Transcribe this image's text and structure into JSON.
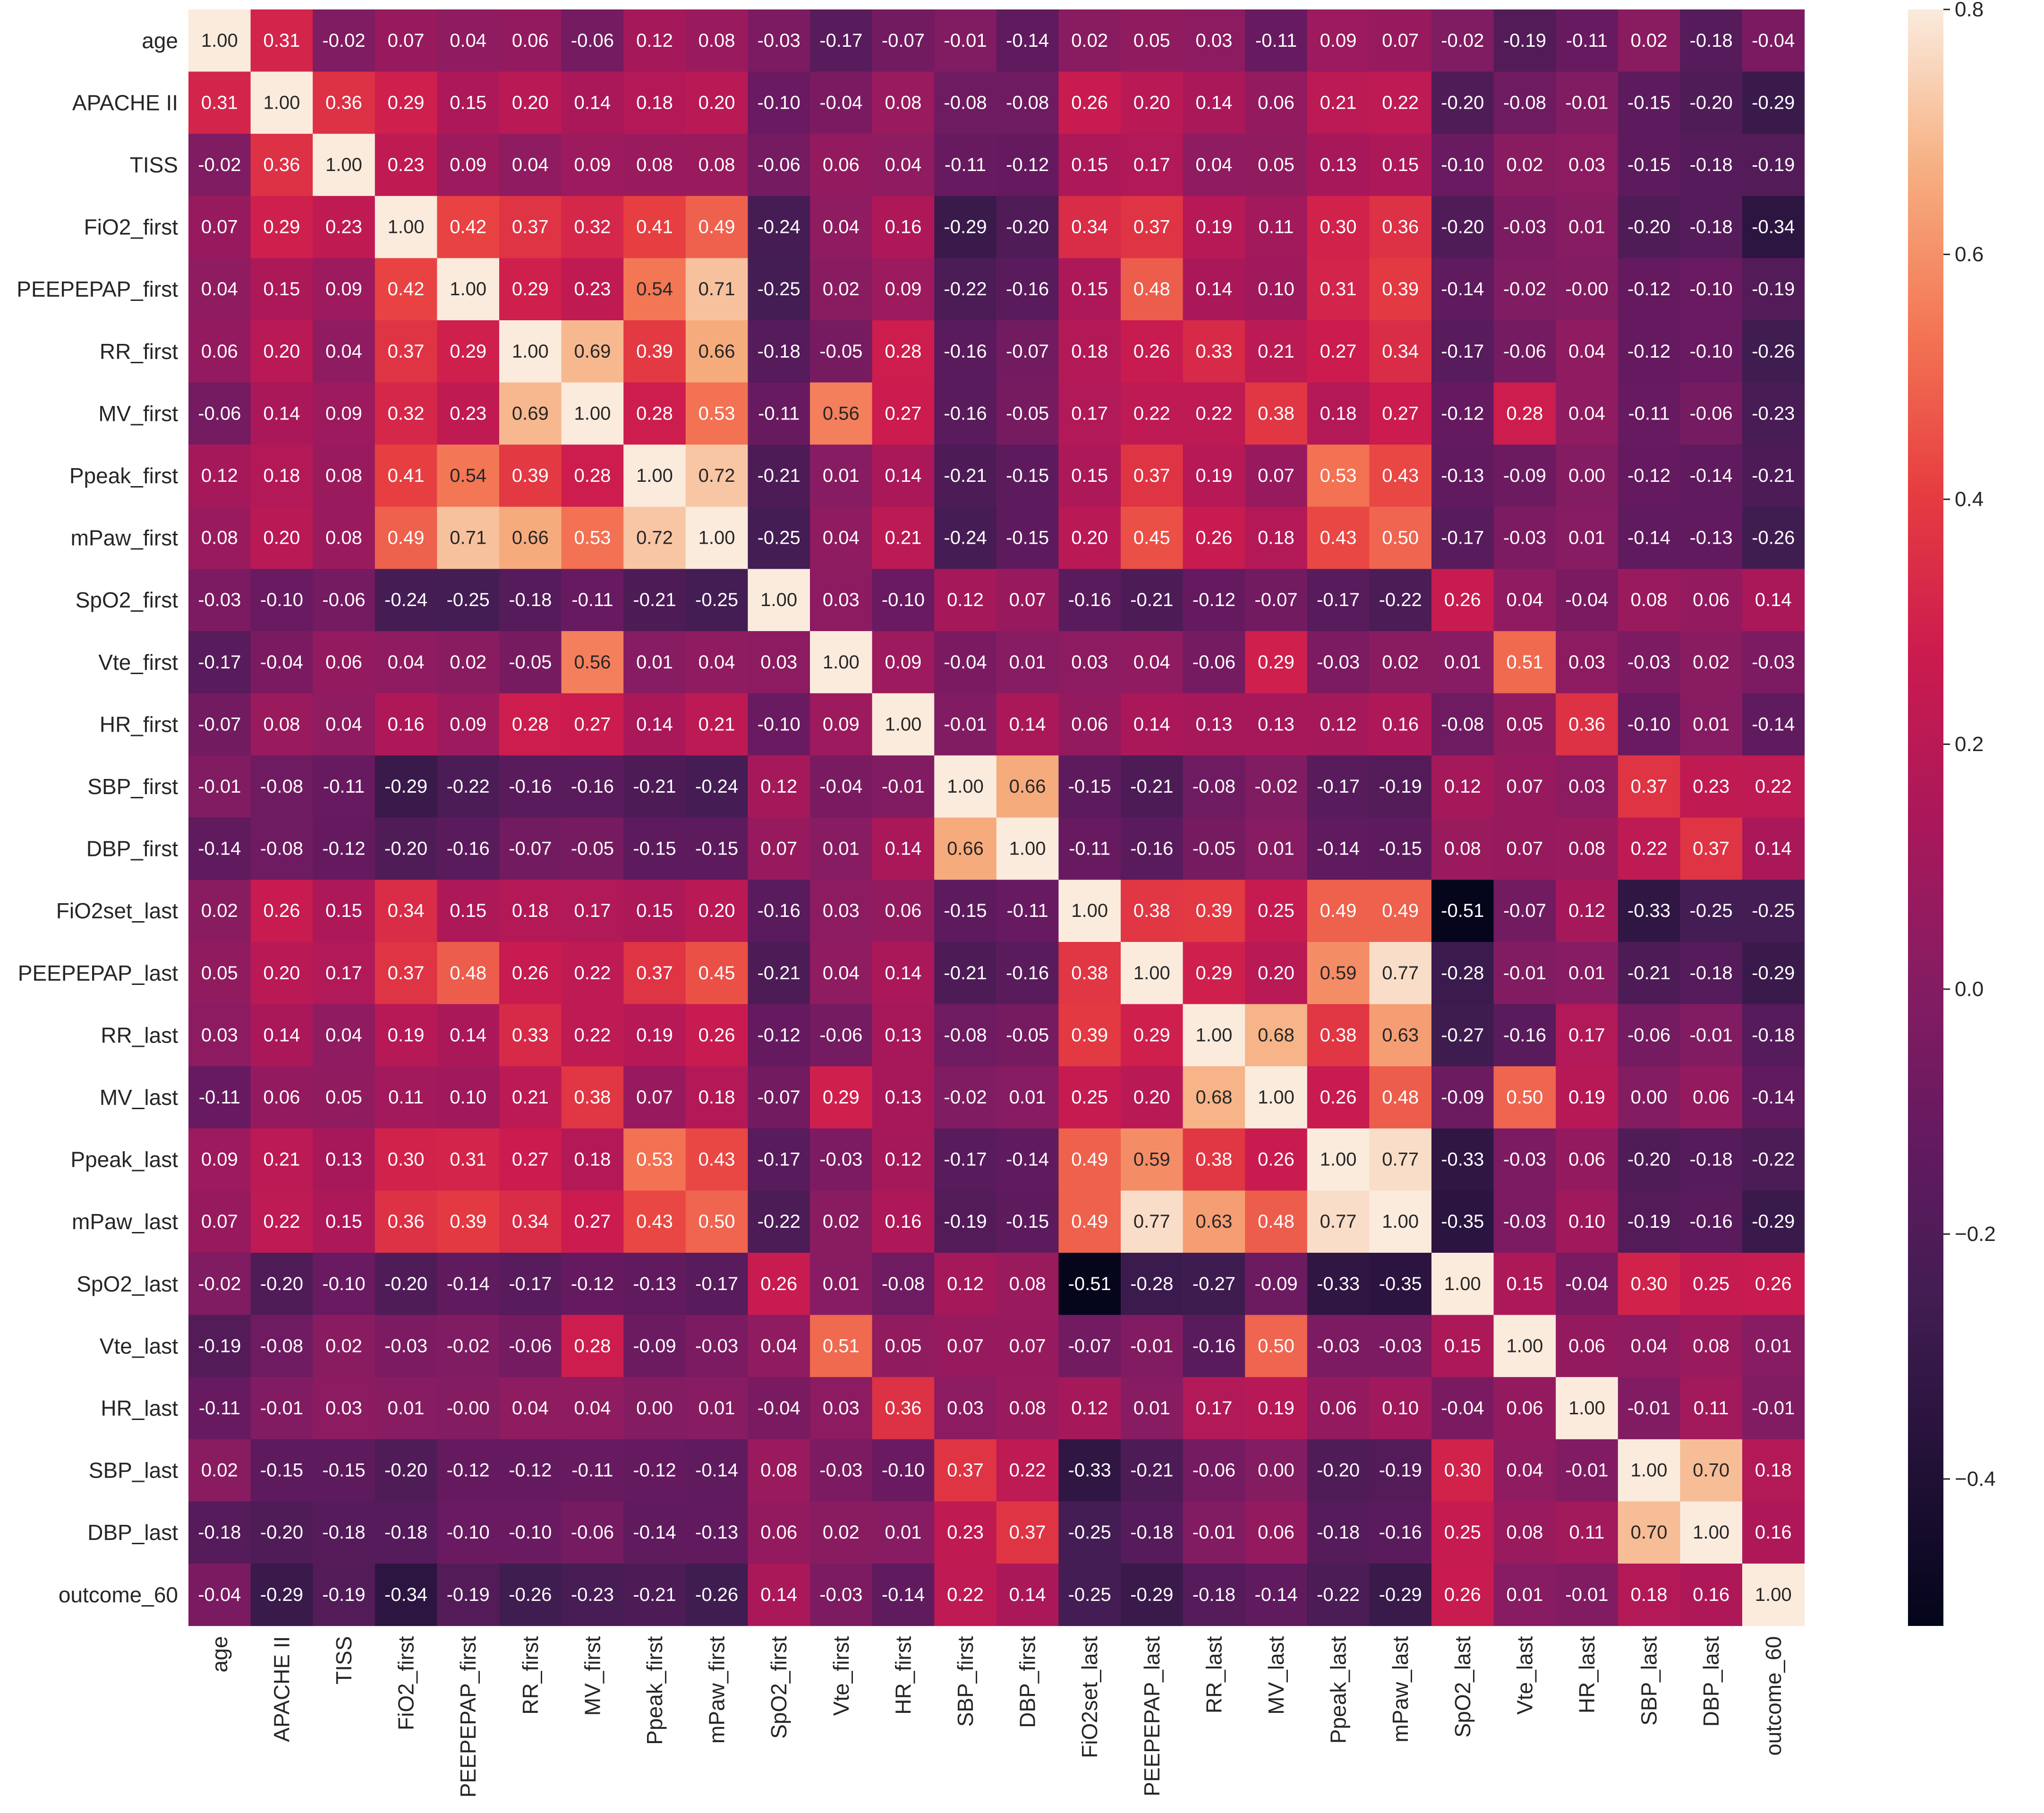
{
  "chart_data": {
    "type": "heatmap",
    "title": "",
    "xlabel": "",
    "ylabel": "",
    "grid": false,
    "legend": "colorbar-right",
    "colormap": "rocket",
    "vmin": -0.52,
    "vmax": 0.8,
    "colorbar_ticks": [
      0.8,
      0.6,
      0.4,
      0.2,
      0.0,
      -0.2,
      -0.4
    ],
    "colorbar_tick_labels": [
      "0.8",
      "0.6",
      "0.4",
      "0.2",
      "0.0",
      "−0.2",
      "−0.4"
    ],
    "labels": [
      "age",
      "APACHE II",
      "TISS",
      "FiO2_first",
      "PEEPEPAP_first",
      "RR_first",
      "MV_first",
      "Ppeak_first",
      "mPaw_first",
      "SpO2_first",
      "Vte_first",
      "HR_first",
      "SBP_first",
      "DBP_first",
      "FiO2set_last",
      "PEEPEPAP_last",
      "RR_last",
      "MV_last",
      "Ppeak_last",
      "mPaw_last",
      "SpO2_last",
      "Vte_last",
      "HR_last",
      "SBP_last",
      "DBP_last",
      "outcome_60"
    ],
    "matrix": [
      [
        "1.00",
        "0.31",
        "-0.02",
        "0.07",
        "0.04",
        "0.06",
        "-0.06",
        "0.12",
        "0.08",
        "-0.03",
        "-0.17",
        "-0.07",
        "-0.01",
        "-0.14",
        "0.02",
        "0.05",
        "0.03",
        "-0.11",
        "0.09",
        "0.07",
        "-0.02",
        "-0.19",
        "-0.11",
        "0.02",
        "-0.18",
        "-0.04"
      ],
      [
        "0.31",
        "1.00",
        "0.36",
        "0.29",
        "0.15",
        "0.20",
        "0.14",
        "0.18",
        "0.20",
        "-0.10",
        "-0.04",
        "0.08",
        "-0.08",
        "-0.08",
        "0.26",
        "0.20",
        "0.14",
        "0.06",
        "0.21",
        "0.22",
        "-0.20",
        "-0.08",
        "-0.01",
        "-0.15",
        "-0.20",
        "-0.29"
      ],
      [
        "-0.02",
        "0.36",
        "1.00",
        "0.23",
        "0.09",
        "0.04",
        "0.09",
        "0.08",
        "0.08",
        "-0.06",
        "0.06",
        "0.04",
        "-0.11",
        "-0.12",
        "0.15",
        "0.17",
        "0.04",
        "0.05",
        "0.13",
        "0.15",
        "-0.10",
        "0.02",
        "0.03",
        "-0.15",
        "-0.18",
        "-0.19"
      ],
      [
        "0.07",
        "0.29",
        "0.23",
        "1.00",
        "0.42",
        "0.37",
        "0.32",
        "0.41",
        "0.49",
        "-0.24",
        "0.04",
        "0.16",
        "-0.29",
        "-0.20",
        "0.34",
        "0.37",
        "0.19",
        "0.11",
        "0.30",
        "0.36",
        "-0.20",
        "-0.03",
        "0.01",
        "-0.20",
        "-0.18",
        "-0.34"
      ],
      [
        "0.04",
        "0.15",
        "0.09",
        "0.42",
        "1.00",
        "0.29",
        "0.23",
        "0.54",
        "0.71",
        "-0.25",
        "0.02",
        "0.09",
        "-0.22",
        "-0.16",
        "0.15",
        "0.48",
        "0.14",
        "0.10",
        "0.31",
        "0.39",
        "-0.14",
        "-0.02",
        "-0.00",
        "-0.12",
        "-0.10",
        "-0.19"
      ],
      [
        "0.06",
        "0.20",
        "0.04",
        "0.37",
        "0.29",
        "1.00",
        "0.69",
        "0.39",
        "0.66",
        "-0.18",
        "-0.05",
        "0.28",
        "-0.16",
        "-0.07",
        "0.18",
        "0.26",
        "0.33",
        "0.21",
        "0.27",
        "0.34",
        "-0.17",
        "-0.06",
        "0.04",
        "-0.12",
        "-0.10",
        "-0.26"
      ],
      [
        "-0.06",
        "0.14",
        "0.09",
        "0.32",
        "0.23",
        "0.69",
        "1.00",
        "0.28",
        "0.53",
        "-0.11",
        "0.56",
        "0.27",
        "-0.16",
        "-0.05",
        "0.17",
        "0.22",
        "0.22",
        "0.38",
        "0.18",
        "0.27",
        "-0.12",
        "0.28",
        "0.04",
        "-0.11",
        "-0.06",
        "-0.23"
      ],
      [
        "0.12",
        "0.18",
        "0.08",
        "0.41",
        "0.54",
        "0.39",
        "0.28",
        "1.00",
        "0.72",
        "-0.21",
        "0.01",
        "0.14",
        "-0.21",
        "-0.15",
        "0.15",
        "0.37",
        "0.19",
        "0.07",
        "0.53",
        "0.43",
        "-0.13",
        "-0.09",
        "0.00",
        "-0.12",
        "-0.14",
        "-0.21"
      ],
      [
        "0.08",
        "0.20",
        "0.08",
        "0.49",
        "0.71",
        "0.66",
        "0.53",
        "0.72",
        "1.00",
        "-0.25",
        "0.04",
        "0.21",
        "-0.24",
        "-0.15",
        "0.20",
        "0.45",
        "0.26",
        "0.18",
        "0.43",
        "0.50",
        "-0.17",
        "-0.03",
        "0.01",
        "-0.14",
        "-0.13",
        "-0.26"
      ],
      [
        "-0.03",
        "-0.10",
        "-0.06",
        "-0.24",
        "-0.25",
        "-0.18",
        "-0.11",
        "-0.21",
        "-0.25",
        "1.00",
        "0.03",
        "-0.10",
        "0.12",
        "0.07",
        "-0.16",
        "-0.21",
        "-0.12",
        "-0.07",
        "-0.17",
        "-0.22",
        "0.26",
        "0.04",
        "-0.04",
        "0.08",
        "0.06",
        "0.14"
      ],
      [
        "-0.17",
        "-0.04",
        "0.06",
        "0.04",
        "0.02",
        "-0.05",
        "0.56",
        "0.01",
        "0.04",
        "0.03",
        "1.00",
        "0.09",
        "-0.04",
        "0.01",
        "0.03",
        "0.04",
        "-0.06",
        "0.29",
        "-0.03",
        "0.02",
        "0.01",
        "0.51",
        "0.03",
        "-0.03",
        "0.02",
        "-0.03"
      ],
      [
        "-0.07",
        "0.08",
        "0.04",
        "0.16",
        "0.09",
        "0.28",
        "0.27",
        "0.14",
        "0.21",
        "-0.10",
        "0.09",
        "1.00",
        "-0.01",
        "0.14",
        "0.06",
        "0.14",
        "0.13",
        "0.13",
        "0.12",
        "0.16",
        "-0.08",
        "0.05",
        "0.36",
        "-0.10",
        "0.01",
        "-0.14"
      ],
      [
        "-0.01",
        "-0.08",
        "-0.11",
        "-0.29",
        "-0.22",
        "-0.16",
        "-0.16",
        "-0.21",
        "-0.24",
        "0.12",
        "-0.04",
        "-0.01",
        "1.00",
        "0.66",
        "-0.15",
        "-0.21",
        "-0.08",
        "-0.02",
        "-0.17",
        "-0.19",
        "0.12",
        "0.07",
        "0.03",
        "0.37",
        "0.23",
        "0.22"
      ],
      [
        "-0.14",
        "-0.08",
        "-0.12",
        "-0.20",
        "-0.16",
        "-0.07",
        "-0.05",
        "-0.15",
        "-0.15",
        "0.07",
        "0.01",
        "0.14",
        "0.66",
        "1.00",
        "-0.11",
        "-0.16",
        "-0.05",
        "0.01",
        "-0.14",
        "-0.15",
        "0.08",
        "0.07",
        "0.08",
        "0.22",
        "0.37",
        "0.14"
      ],
      [
        "0.02",
        "0.26",
        "0.15",
        "0.34",
        "0.15",
        "0.18",
        "0.17",
        "0.15",
        "0.20",
        "-0.16",
        "0.03",
        "0.06",
        "-0.15",
        "-0.11",
        "1.00",
        "0.38",
        "0.39",
        "0.25",
        "0.49",
        "0.49",
        "-0.51",
        "-0.07",
        "0.12",
        "-0.33",
        "-0.25",
        "-0.25"
      ],
      [
        "0.05",
        "0.20",
        "0.17",
        "0.37",
        "0.48",
        "0.26",
        "0.22",
        "0.37",
        "0.45",
        "-0.21",
        "0.04",
        "0.14",
        "-0.21",
        "-0.16",
        "0.38",
        "1.00",
        "0.29",
        "0.20",
        "0.59",
        "0.77",
        "-0.28",
        "-0.01",
        "0.01",
        "-0.21",
        "-0.18",
        "-0.29"
      ],
      [
        "0.03",
        "0.14",
        "0.04",
        "0.19",
        "0.14",
        "0.33",
        "0.22",
        "0.19",
        "0.26",
        "-0.12",
        "-0.06",
        "0.13",
        "-0.08",
        "-0.05",
        "0.39",
        "0.29",
        "1.00",
        "0.68",
        "0.38",
        "0.63",
        "-0.27",
        "-0.16",
        "0.17",
        "-0.06",
        "-0.01",
        "-0.18"
      ],
      [
        "-0.11",
        "0.06",
        "0.05",
        "0.11",
        "0.10",
        "0.21",
        "0.38",
        "0.07",
        "0.18",
        "-0.07",
        "0.29",
        "0.13",
        "-0.02",
        "0.01",
        "0.25",
        "0.20",
        "0.68",
        "1.00",
        "0.26",
        "0.48",
        "-0.09",
        "0.50",
        "0.19",
        "0.00",
        "0.06",
        "-0.14"
      ],
      [
        "0.09",
        "0.21",
        "0.13",
        "0.30",
        "0.31",
        "0.27",
        "0.18",
        "0.53",
        "0.43",
        "-0.17",
        "-0.03",
        "0.12",
        "-0.17",
        "-0.14",
        "0.49",
        "0.59",
        "0.38",
        "0.26",
        "1.00",
        "0.77",
        "-0.33",
        "-0.03",
        "0.06",
        "-0.20",
        "-0.18",
        "-0.22"
      ],
      [
        "0.07",
        "0.22",
        "0.15",
        "0.36",
        "0.39",
        "0.34",
        "0.27",
        "0.43",
        "0.50",
        "-0.22",
        "0.02",
        "0.16",
        "-0.19",
        "-0.15",
        "0.49",
        "0.77",
        "0.63",
        "0.48",
        "0.77",
        "1.00",
        "-0.35",
        "-0.03",
        "0.10",
        "-0.19",
        "-0.16",
        "-0.29"
      ],
      [
        "-0.02",
        "-0.20",
        "-0.10",
        "-0.20",
        "-0.14",
        "-0.17",
        "-0.12",
        "-0.13",
        "-0.17",
        "0.26",
        "0.01",
        "-0.08",
        "0.12",
        "0.08",
        "-0.51",
        "-0.28",
        "-0.27",
        "-0.09",
        "-0.33",
        "-0.35",
        "1.00",
        "0.15",
        "-0.04",
        "0.30",
        "0.25",
        "0.26"
      ],
      [
        "-0.19",
        "-0.08",
        "0.02",
        "-0.03",
        "-0.02",
        "-0.06",
        "0.28",
        "-0.09",
        "-0.03",
        "0.04",
        "0.51",
        "0.05",
        "0.07",
        "0.07",
        "-0.07",
        "-0.01",
        "-0.16",
        "0.50",
        "-0.03",
        "-0.03",
        "0.15",
        "1.00",
        "0.06",
        "0.04",
        "0.08",
        "0.01"
      ],
      [
        "-0.11",
        "-0.01",
        "0.03",
        "0.01",
        "-0.00",
        "0.04",
        "0.04",
        "0.00",
        "0.01",
        "-0.04",
        "0.03",
        "0.36",
        "0.03",
        "0.08",
        "0.12",
        "0.01",
        "0.17",
        "0.19",
        "0.06",
        "0.10",
        "-0.04",
        "0.06",
        "1.00",
        "-0.01",
        "0.11",
        "-0.01"
      ],
      [
        "0.02",
        "-0.15",
        "-0.15",
        "-0.20",
        "-0.12",
        "-0.12",
        "-0.11",
        "-0.12",
        "-0.14",
        "0.08",
        "-0.03",
        "-0.10",
        "0.37",
        "0.22",
        "-0.33",
        "-0.21",
        "-0.06",
        "0.00",
        "-0.20",
        "-0.19",
        "0.30",
        "0.04",
        "-0.01",
        "1.00",
        "0.70",
        "0.18"
      ],
      [
        "-0.18",
        "-0.20",
        "-0.18",
        "-0.18",
        "-0.10",
        "-0.10",
        "-0.06",
        "-0.14",
        "-0.13",
        "0.06",
        "0.02",
        "0.01",
        "0.23",
        "0.37",
        "-0.25",
        "-0.18",
        "-0.01",
        "0.06",
        "-0.18",
        "-0.16",
        "0.25",
        "0.08",
        "0.11",
        "0.70",
        "1.00",
        "0.16"
      ],
      [
        "-0.04",
        "-0.29",
        "-0.19",
        "-0.34",
        "-0.19",
        "-0.26",
        "-0.23",
        "-0.21",
        "-0.26",
        "0.14",
        "-0.03",
        "-0.14",
        "0.22",
        "0.14",
        "-0.25",
        "-0.29",
        "-0.18",
        "-0.14",
        "-0.22",
        "-0.29",
        "0.26",
        "0.01",
        "-0.01",
        "0.18",
        "0.16",
        "1.00"
      ]
    ]
  }
}
